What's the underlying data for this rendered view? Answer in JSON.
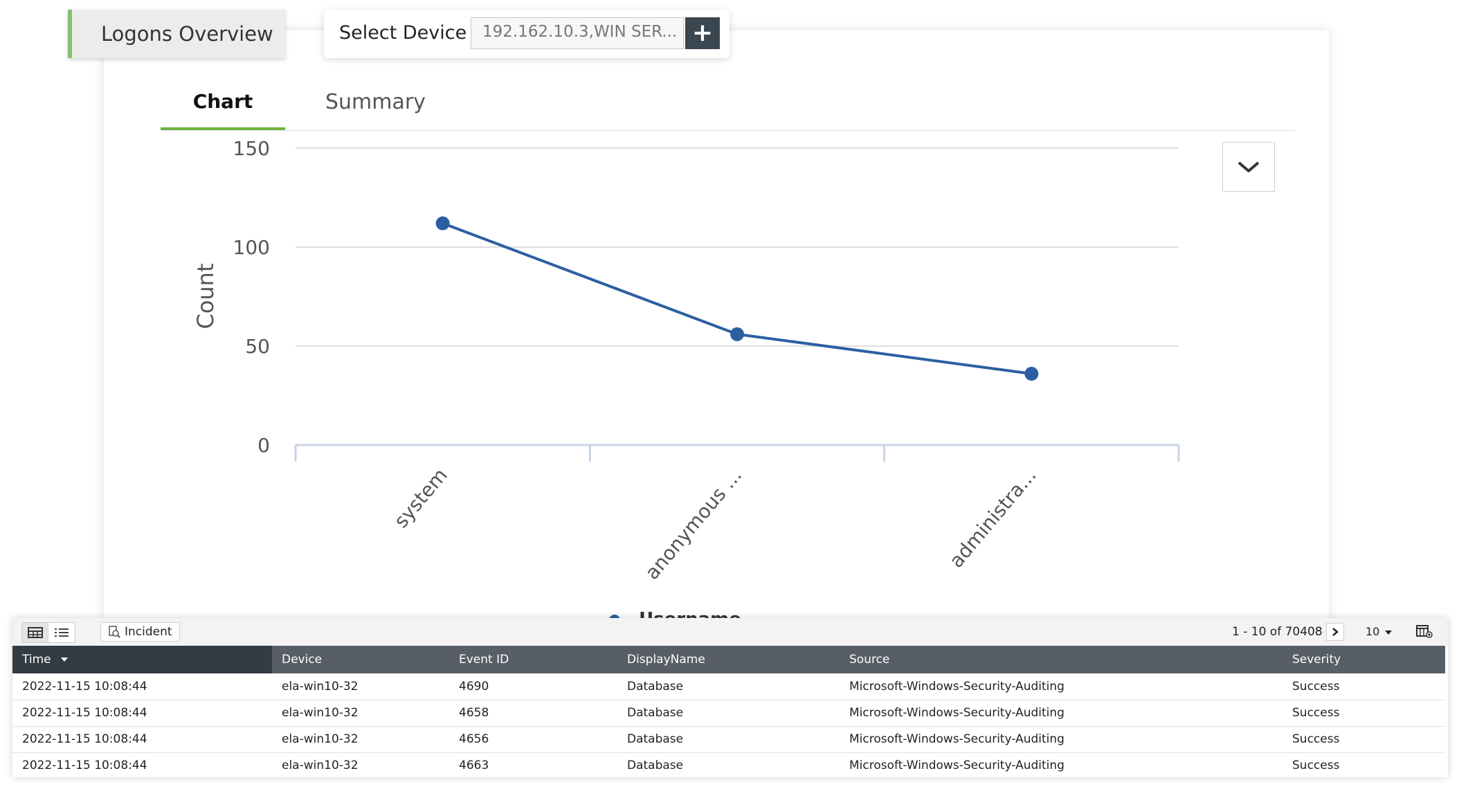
{
  "header": {
    "title": "Logons Overview",
    "device_label": "Select Device",
    "device_value": "192.162.10.3,WIN SER...",
    "add_label": "+"
  },
  "tabs": [
    {
      "label": "Chart",
      "active": true
    },
    {
      "label": "Summary",
      "active": false
    }
  ],
  "chart_data": {
    "type": "line",
    "categories": [
      "system",
      "anonymous ...",
      "administra..."
    ],
    "series": [
      {
        "name": "Username",
        "values": [
          112,
          56,
          36
        ],
        "color": "#2c5fa2"
      }
    ],
    "ylabel": "Count",
    "xlabel": "",
    "ylim": [
      0,
      150
    ],
    "yticks": [
      "0",
      "50",
      "100",
      "150"
    ],
    "grid": true,
    "legend": "bottom"
  },
  "legend_label": "Username",
  "toolbar": {
    "incident_label": "Incident",
    "pager_text": "1 - 10 of 70408",
    "page_size": "10"
  },
  "table": {
    "columns": [
      "Time",
      "Device",
      "Event ID",
      "DisplayName",
      "Source",
      "Severity"
    ],
    "rows": [
      [
        "2022-11-15 10:08:44",
        "ela-win10-32",
        "4690",
        "Database",
        "Microsoft-Windows-Security-Auditing",
        "Success"
      ],
      [
        "2022-11-15 10:08:44",
        "ela-win10-32",
        "4658",
        "Database",
        "Microsoft-Windows-Security-Auditing",
        "Success"
      ],
      [
        "2022-11-15 10:08:44",
        "ela-win10-32",
        "4656",
        "Database",
        "Microsoft-Windows-Security-Auditing",
        "Success"
      ],
      [
        "2022-11-15 10:08:44",
        "ela-win10-32",
        "4663",
        "Database",
        "Microsoft-Windows-Security-Auditing",
        "Success"
      ]
    ]
  },
  "colors": {
    "accent_green": "#6cb33f",
    "line_blue": "#2c5fa2",
    "header_dark": "#575e65"
  }
}
